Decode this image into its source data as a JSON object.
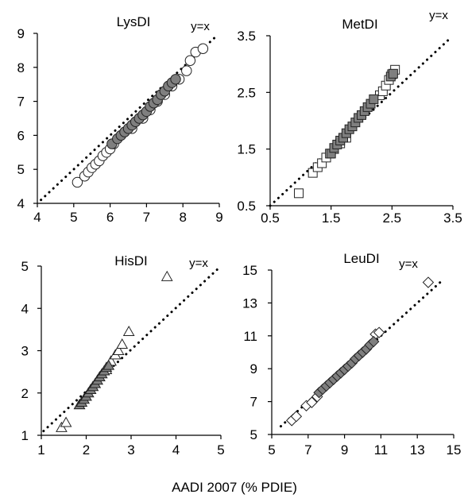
{
  "figure": {
    "xlabel": "AADI 2007 (% PDIE)"
  },
  "chart_data": [
    {
      "type": "scatter",
      "title": "LysDI",
      "identity_label": "y=x",
      "xlim": [
        4,
        9
      ],
      "ylim": [
        4,
        9
      ],
      "x_ticks": [
        "4",
        "5",
        "6",
        "7",
        "8",
        "9"
      ],
      "y_ticks": [
        "4",
        "5",
        "6",
        "7",
        "8",
        "9"
      ],
      "marker": "circle",
      "identity_line": [
        [
          4.1,
          4.1
        ],
        [
          8.95,
          8.95
        ]
      ],
      "series": [
        {
          "fill": "#ffffff",
          "points": [
            [
              5.1,
              4.62
            ],
            [
              5.3,
              4.8
            ],
            [
              5.4,
              4.92
            ],
            [
              5.5,
              5.05
            ],
            [
              5.6,
              5.15
            ],
            [
              5.7,
              5.25
            ],
            [
              5.8,
              5.4
            ],
            [
              5.9,
              5.5
            ],
            [
              6.0,
              5.6
            ],
            [
              6.1,
              5.75
            ],
            [
              6.6,
              6.2
            ],
            [
              6.9,
              6.5
            ],
            [
              7.1,
              6.75
            ],
            [
              7.3,
              7.0
            ],
            [
              7.5,
              7.2
            ],
            [
              7.7,
              7.45
            ],
            [
              7.9,
              7.65
            ],
            [
              8.1,
              7.9
            ],
            [
              8.2,
              8.2
            ],
            [
              8.35,
              8.45
            ],
            [
              8.55,
              8.55
            ]
          ]
        },
        {
          "fill": "#7f7f7f",
          "points": [
            [
              6.05,
              5.75
            ],
            [
              6.2,
              5.9
            ],
            [
              6.3,
              6.0
            ],
            [
              6.4,
              6.1
            ],
            [
              6.5,
              6.2
            ],
            [
              6.6,
              6.3
            ],
            [
              6.7,
              6.4
            ],
            [
              6.8,
              6.5
            ],
            [
              6.9,
              6.6
            ],
            [
              7.0,
              6.7
            ],
            [
              7.1,
              6.85
            ],
            [
              7.2,
              6.95
            ],
            [
              7.3,
              7.05
            ],
            [
              7.4,
              7.2
            ],
            [
              7.5,
              7.3
            ],
            [
              7.6,
              7.45
            ],
            [
              7.7,
              7.55
            ],
            [
              7.8,
              7.65
            ]
          ]
        }
      ]
    },
    {
      "type": "scatter",
      "title": "MetDI",
      "identity_label": "y=x",
      "xlim": [
        0.5,
        3.5
      ],
      "ylim": [
        0.5,
        3.5
      ],
      "x_ticks": [
        "0.5",
        "1.5",
        "2.5",
        "3.5"
      ],
      "y_ticks": [
        "0.5",
        "1.5",
        "2.5",
        "3.5"
      ],
      "marker": "square",
      "identity_line": [
        [
          0.5,
          0.5
        ],
        [
          3.45,
          3.45
        ]
      ],
      "series": [
        {
          "fill": "#ffffff",
          "points": [
            [
              0.97,
              0.72
            ],
            [
              1.2,
              1.08
            ],
            [
              1.28,
              1.18
            ],
            [
              1.35,
              1.25
            ],
            [
              1.42,
              1.35
            ],
            [
              1.48,
              1.42
            ],
            [
              1.55,
              1.5
            ],
            [
              1.65,
              1.6
            ],
            [
              1.75,
              1.7
            ],
            [
              2.3,
              2.45
            ],
            [
              2.35,
              2.52
            ],
            [
              2.4,
              2.62
            ],
            [
              2.45,
              2.72
            ],
            [
              2.5,
              2.82
            ],
            [
              2.55,
              2.9
            ]
          ]
        },
        {
          "fill": "#7f7f7f",
          "points": [
            [
              1.5,
              1.42
            ],
            [
              1.55,
              1.52
            ],
            [
              1.6,
              1.58
            ],
            [
              1.65,
              1.65
            ],
            [
              1.7,
              1.7
            ],
            [
              1.75,
              1.78
            ],
            [
              1.8,
              1.85
            ],
            [
              1.85,
              1.9
            ],
            [
              1.9,
              1.97
            ],
            [
              1.95,
              2.05
            ],
            [
              2.0,
              2.1
            ],
            [
              2.05,
              2.17
            ],
            [
              2.1,
              2.24
            ],
            [
              2.15,
              2.3
            ],
            [
              2.2,
              2.38
            ],
            [
              2.48,
              2.78
            ],
            [
              2.52,
              2.83
            ]
          ]
        }
      ]
    },
    {
      "type": "scatter",
      "title": "HisDI",
      "identity_label": "y=x",
      "xlim": [
        1,
        5
      ],
      "ylim": [
        1,
        5
      ],
      "x_ticks": [
        "1",
        "2",
        "3",
        "4",
        "5"
      ],
      "y_ticks": [
        "1",
        "2",
        "3",
        "4",
        "5"
      ],
      "marker": "triangle",
      "identity_line": [
        [
          1.05,
          1.1
        ],
        [
          4.97,
          4.97
        ]
      ],
      "series": [
        {
          "fill": "#ffffff",
          "points": [
            [
              1.45,
              1.18
            ],
            [
              1.55,
              1.3
            ],
            [
              1.85,
              1.72
            ],
            [
              2.45,
              2.55
            ],
            [
              2.55,
              2.75
            ],
            [
              2.65,
              2.9
            ],
            [
              2.72,
              3.0
            ],
            [
              2.8,
              3.15
            ],
            [
              2.95,
              3.45
            ],
            [
              3.8,
              4.75
            ]
          ]
        },
        {
          "fill": "#7f7f7f",
          "points": [
            [
              1.85,
              1.72
            ],
            [
              1.9,
              1.78
            ],
            [
              1.95,
              1.85
            ],
            [
              2.0,
              1.92
            ],
            [
              2.05,
              2.0
            ],
            [
              2.1,
              2.08
            ],
            [
              2.15,
              2.15
            ],
            [
              2.2,
              2.22
            ],
            [
              2.25,
              2.3
            ],
            [
              2.3,
              2.38
            ],
            [
              2.35,
              2.45
            ],
            [
              2.4,
              2.52
            ],
            [
              2.45,
              2.6
            ],
            [
              2.5,
              2.65
            ]
          ]
        }
      ]
    },
    {
      "type": "scatter",
      "title": "LeuDI",
      "identity_label": "y=x",
      "xlim": [
        5,
        15
      ],
      "ylim": [
        5,
        15
      ],
      "x_ticks": [
        "5",
        "7",
        "9",
        "11",
        "13",
        "15"
      ],
      "y_ticks": [
        "5",
        "7",
        "9",
        "11",
        "13",
        "15"
      ],
      "marker": "diamond",
      "identity_line": [
        [
          5.5,
          5.5
        ],
        [
          14.4,
          14.4
        ]
      ],
      "series": [
        {
          "fill": "#ffffff",
          "points": [
            [
              6.1,
              5.85
            ],
            [
              6.35,
              6.1
            ],
            [
              6.9,
              6.75
            ],
            [
              7.2,
              6.95
            ],
            [
              7.5,
              7.3
            ],
            [
              10.7,
              11.1
            ],
            [
              10.9,
              11.2
            ],
            [
              13.6,
              14.25
            ]
          ]
        },
        {
          "fill": "#7f7f7f",
          "points": [
            [
              7.6,
              7.55
            ],
            [
              7.8,
              7.75
            ],
            [
              8.0,
              7.95
            ],
            [
              8.2,
              8.15
            ],
            [
              8.4,
              8.35
            ],
            [
              8.6,
              8.55
            ],
            [
              8.8,
              8.75
            ],
            [
              9.0,
              8.95
            ],
            [
              9.2,
              9.15
            ],
            [
              9.4,
              9.35
            ],
            [
              9.6,
              9.6
            ],
            [
              9.8,
              9.8
            ],
            [
              10.0,
              10.0
            ],
            [
              10.2,
              10.2
            ],
            [
              10.4,
              10.45
            ],
            [
              10.6,
              10.65
            ]
          ]
        }
      ]
    }
  ]
}
